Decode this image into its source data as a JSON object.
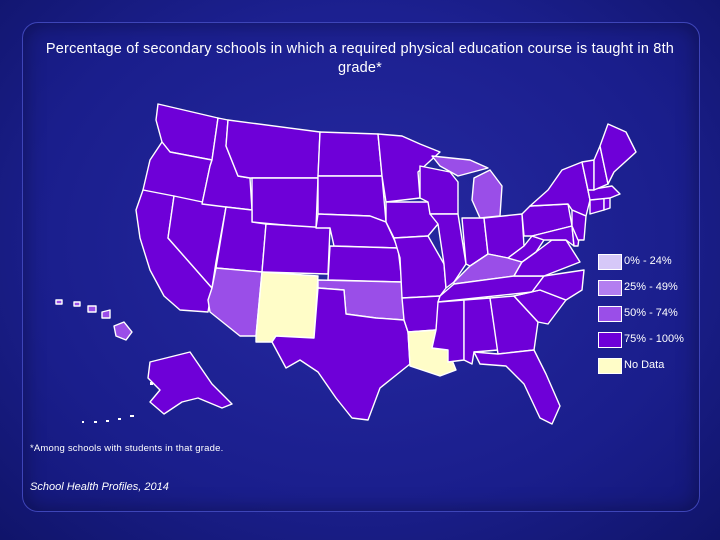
{
  "title": "Percentage of secondary schools in which a required physical education course is taught in 8th grade*",
  "footnote": "*Among schools with students in that grade.",
  "source": "School Health Profiles, 2014",
  "colors": {
    "cat_0_24": "#d6c8f8",
    "cat_25_49": "#b37ef0",
    "cat_50_74": "#9a4ee8",
    "cat_75_100": "#6e00d8",
    "no_data": "#fffdc8"
  },
  "legend": [
    {
      "label": "0% - 24%",
      "category": "cat_0_24"
    },
    {
      "label": "25% - 49%",
      "category": "cat_25_49"
    },
    {
      "label": "50% - 74%",
      "category": "cat_50_74"
    },
    {
      "label": "75% - 100%",
      "category": "cat_75_100"
    },
    {
      "label": "No Data",
      "category": "no_data"
    }
  ],
  "states": {
    "WA": "cat_75_100",
    "OR": "cat_75_100",
    "CA": "cat_75_100",
    "NV": "cat_75_100",
    "ID": "cat_75_100",
    "MT": "cat_75_100",
    "WY": "cat_75_100",
    "UT": "cat_75_100",
    "AZ": "cat_50_74",
    "NM": "no_data",
    "CO": "cat_75_100",
    "ND": "cat_75_100",
    "SD": "cat_75_100",
    "NE": "cat_75_100",
    "KS": "cat_75_100",
    "OK": "cat_50_74",
    "TX": "cat_75_100",
    "MN": "cat_75_100",
    "IA": "cat_75_100",
    "MO": "cat_75_100",
    "AR": "cat_75_100",
    "LA": "no_data",
    "WI": "cat_75_100",
    "IL": "cat_75_100",
    "MI": "cat_50_74",
    "IN": "cat_75_100",
    "OH": "cat_75_100",
    "KY": "cat_50_74",
    "TN": "cat_75_100",
    "MS": "cat_75_100",
    "AL": "cat_75_100",
    "GA": "cat_75_100",
    "FL": "cat_75_100",
    "SC": "cat_75_100",
    "NC": "cat_75_100",
    "VA": "cat_75_100",
    "WV": "cat_75_100",
    "PA": "cat_75_100",
    "NY": "cat_75_100",
    "ME": "cat_75_100",
    "NH": "cat_75_100",
    "VT": "cat_75_100",
    "MA": "cat_75_100",
    "NJ": "cat_75_100",
    "MD": "cat_75_100",
    "DE": "cat_75_100",
    "CT": "cat_75_100",
    "RI": "cat_75_100",
    "AK": "cat_75_100",
    "HI": "cat_50_74"
  }
}
